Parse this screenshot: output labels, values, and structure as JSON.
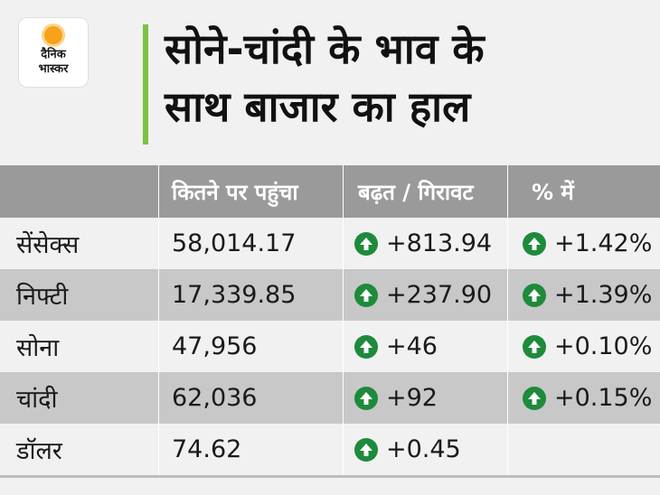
{
  "brand": {
    "line1": "दैनिक",
    "line2": "भास्कर",
    "accent_color": "#7dc142",
    "sun_color": "#f7a21b"
  },
  "title": {
    "line1": "सोने-चांदी के भाव के",
    "line2": "साथ बाजार का हाल"
  },
  "table": {
    "headers": [
      "",
      "कितने पर पहुंचा",
      "बढ़त / गिरावट",
      "% में"
    ],
    "rows": [
      {
        "name": "सेंसेक्स",
        "value": "58,014.17",
        "change": "+813.94",
        "percent": "+1.42%"
      },
      {
        "name": "निफ्टी",
        "value": "17,339.85",
        "change": "+237.90",
        "percent": "+1.39%"
      },
      {
        "name": "सोना",
        "value": "47,956",
        "change": "+46",
        "percent": "+0.10%"
      },
      {
        "name": "चांदी",
        "value": "62,036",
        "change": "+92",
        "percent": "+0.15%"
      },
      {
        "name": "डॉलर",
        "value": "74.62",
        "change": "+0.45",
        "percent": ""
      }
    ],
    "up_icon_color": "#1e8a3c",
    "header_bg": "#9a9a9a",
    "alt_row_bg": "#c8c8c8"
  }
}
